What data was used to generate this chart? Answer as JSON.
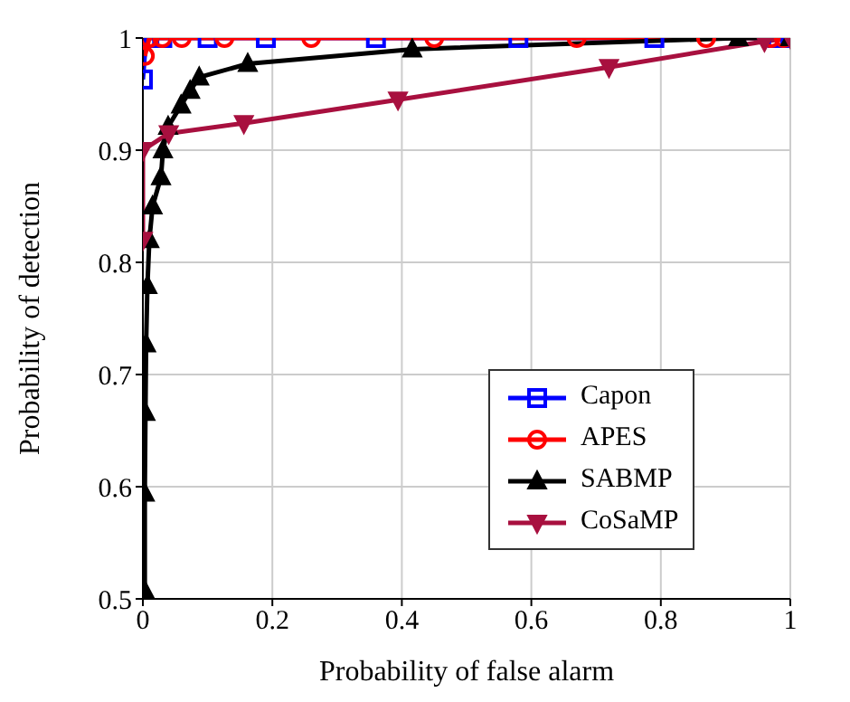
{
  "chart_data": {
    "type": "line",
    "xlabel": "Probability of false alarm",
    "ylabel": "Probability of detection",
    "xlim": [
      0,
      1
    ],
    "ylim": [
      0.5,
      1
    ],
    "xticks": [
      0,
      0.2,
      0.4,
      0.6,
      0.8,
      1
    ],
    "yticks": [
      0.5,
      0.6,
      0.7,
      0.8,
      0.9,
      1
    ],
    "grid": true,
    "legend": "bottom right",
    "line_style": "solid",
    "series": [
      {
        "name": "Capon",
        "color": "#0000ff",
        "marker": "square",
        "x": [
          0,
          0.005,
          0.01,
          0.03,
          0.1,
          0.19,
          0.36,
          0.58,
          0.79,
          0.98,
          1
        ],
        "values": [
          0.963,
          1,
          1,
          1,
          1,
          1,
          1,
          1,
          1,
          1,
          1
        ]
      },
      {
        "name": "APES",
        "color": "#ff0000",
        "marker": "circle",
        "x": [
          0.003,
          0.01,
          0.03,
          0.06,
          0.126,
          0.26,
          0.45,
          0.67,
          0.87,
          0.97,
          0.99
        ],
        "values": [
          0.984,
          1,
          1,
          1,
          1,
          1,
          1,
          1,
          1,
          1,
          1
        ]
      },
      {
        "name": "SABMP",
        "color": "#000000",
        "marker": "triangle",
        "x": [
          0.003,
          0.003,
          0.004,
          0.005,
          0.007,
          0.01,
          0.015,
          0.028,
          0.031,
          0.039,
          0.059,
          0.073,
          0.087,
          0.162,
          0.416,
          0.92,
          1
        ],
        "values": [
          0.507,
          0.594,
          0.666,
          0.727,
          0.779,
          0.82,
          0.85,
          0.876,
          0.9,
          0.921,
          0.94,
          0.953,
          0.965,
          0.977,
          0.99,
          1,
          1
        ]
      },
      {
        "name": "CoSaMP",
        "color": "#a8103f",
        "marker": "triangle_down",
        "x": [
          0,
          0,
          0.04,
          0.156,
          0.394,
          0.72,
          0.96,
          1
        ],
        "values": [
          0.82,
          0.9,
          0.915,
          0.924,
          0.945,
          0.974,
          0.997,
          1
        ]
      }
    ]
  }
}
